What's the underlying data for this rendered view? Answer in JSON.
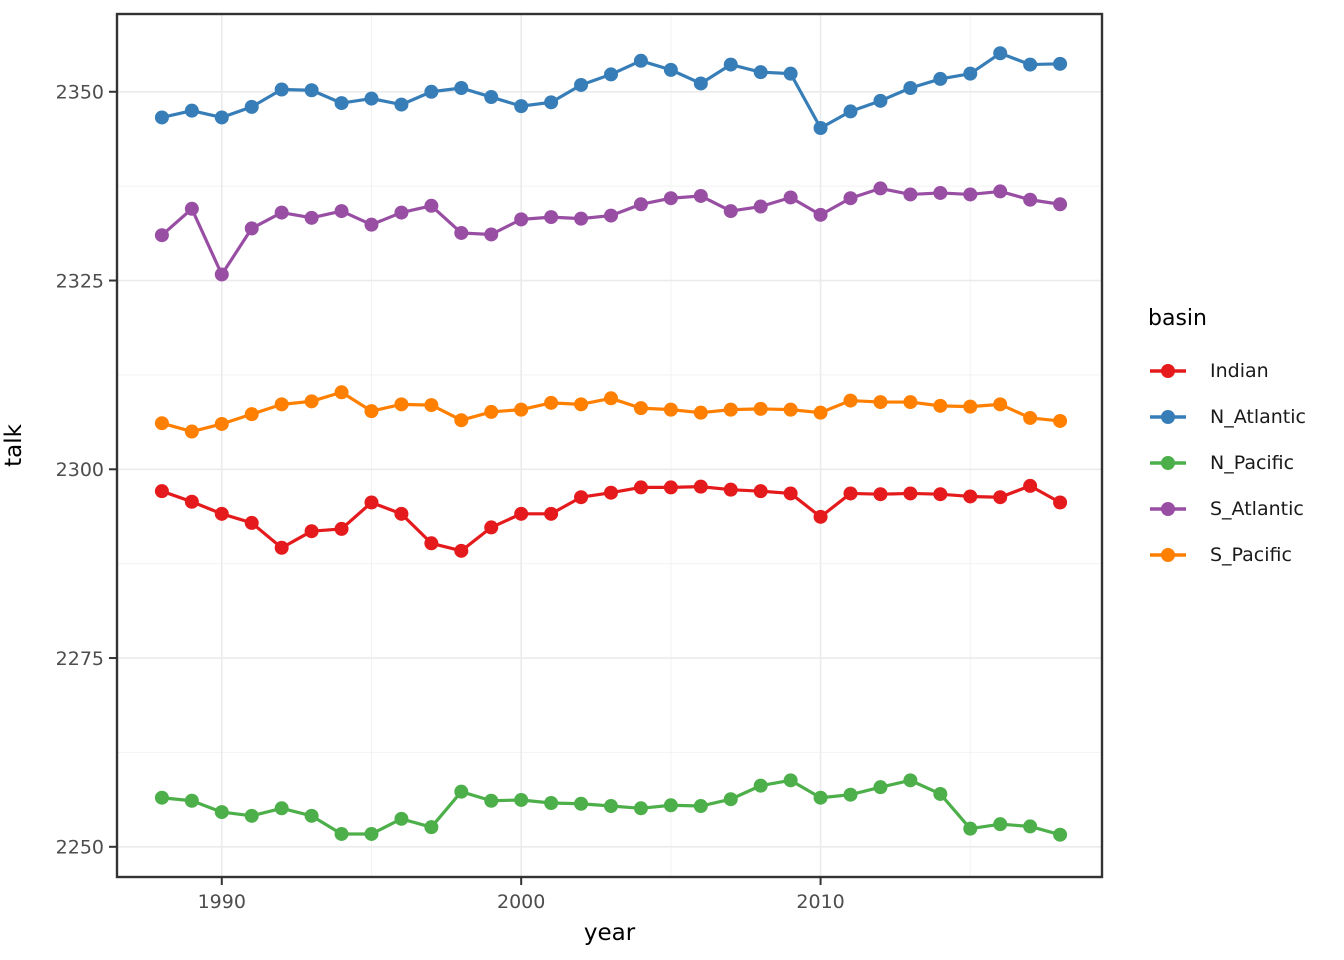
{
  "figure": {
    "background": "#FFFFFF",
    "panel_background": "#FFFFFF",
    "panel_border_color": "#333333",
    "grid_major_color": "#EBEBEB",
    "grid_minor_color": "#F2F2F2",
    "tick_mark_color": "#333333",
    "tick_label_color": "#4D4D4D",
    "axis_title_color": "#000000"
  },
  "chart_data": {
    "type": "line",
    "title": "",
    "xlabel": "year",
    "ylabel": "talk",
    "legend_title": "basin",
    "legend_position": "right",
    "grid": true,
    "marker": "point",
    "x": [
      1988,
      1989,
      1990,
      1991,
      1992,
      1993,
      1994,
      1995,
      1996,
      1997,
      1998,
      1999,
      2000,
      2001,
      2002,
      2003,
      2004,
      2005,
      2006,
      2007,
      2008,
      2009,
      2010,
      2011,
      2012,
      2013,
      2014,
      2015,
      2016,
      2017,
      2018
    ],
    "x_ticks": [
      1990,
      2000,
      2010
    ],
    "x_minor_ticks": [
      1995,
      2005,
      2015
    ],
    "y_ticks": [
      2250,
      2275,
      2300,
      2325,
      2350
    ],
    "y_minor_ticks": [
      2262.5,
      2287.5,
      2312.5,
      2337.5
    ],
    "xlim": [
      1986.5,
      2019.4
    ],
    "ylim": [
      2246.0,
      2360.3
    ],
    "series": [
      {
        "name": "Indian",
        "color": "#E41A1C",
        "values": [
          2297.1,
          2295.7,
          2294.1,
          2292.9,
          2289.6,
          2291.8,
          2292.1,
          2295.6,
          2294.1,
          2290.2,
          2289.2,
          2292.3,
          2294.1,
          2294.1,
          2296.3,
          2296.9,
          2297.6,
          2297.6,
          2297.7,
          2297.3,
          2297.1,
          2296.8,
          2293.7,
          2296.8,
          2296.7,
          2296.8,
          2296.7,
          2296.4,
          2296.3,
          2297.8,
          2295.6
        ]
      },
      {
        "name": "N_Atlantic",
        "color": "#377EB8",
        "values": [
          2346.6,
          2347.5,
          2346.6,
          2348.0,
          2350.3,
          2350.2,
          2348.5,
          2349.1,
          2348.3,
          2350.0,
          2350.5,
          2349.3,
          2348.1,
          2348.6,
          2350.9,
          2352.3,
          2354.1,
          2352.9,
          2351.1,
          2353.6,
          2352.6,
          2352.4,
          2345.2,
          2347.4,
          2348.8,
          2350.5,
          2351.7,
          2352.4,
          2355.1,
          2353.6,
          2353.7
        ]
      },
      {
        "name": "N_Pacific",
        "color": "#4DAF4A",
        "values": [
          2256.5,
          2256.1,
          2254.6,
          2254.1,
          2255.1,
          2254.1,
          2251.7,
          2251.7,
          2253.7,
          2252.6,
          2257.3,
          2256.1,
          2256.2,
          2255.8,
          2255.7,
          2255.4,
          2255.1,
          2255.5,
          2255.4,
          2256.3,
          2258.1,
          2258.8,
          2256.5,
          2256.9,
          2257.9,
          2258.8,
          2257.0,
          2252.4,
          2253.0,
          2252.7,
          2251.6
        ]
      },
      {
        "name": "S_Atlantic",
        "color": "#984EA3",
        "values": [
          2331.0,
          2334.5,
          2325.8,
          2331.9,
          2334.0,
          2333.3,
          2334.2,
          2332.4,
          2334.0,
          2334.9,
          2331.3,
          2331.1,
          2333.1,
          2333.4,
          2333.2,
          2333.6,
          2335.1,
          2335.9,
          2336.2,
          2334.2,
          2334.8,
          2336.0,
          2333.7,
          2335.9,
          2337.2,
          2336.4,
          2336.6,
          2336.4,
          2336.8,
          2335.7,
          2335.1
        ]
      },
      {
        "name": "S_Pacific",
        "color": "#FF7F00",
        "values": [
          2306.1,
          2305.0,
          2306.0,
          2307.3,
          2308.6,
          2309.0,
          2310.2,
          2307.7,
          2308.6,
          2308.5,
          2306.5,
          2307.6,
          2307.9,
          2308.8,
          2308.6,
          2309.4,
          2308.1,
          2307.9,
          2307.5,
          2307.9,
          2308.0,
          2307.9,
          2307.5,
          2309.1,
          2308.9,
          2308.9,
          2308.4,
          2308.3,
          2308.6,
          2306.8,
          2306.4
        ]
      }
    ]
  }
}
